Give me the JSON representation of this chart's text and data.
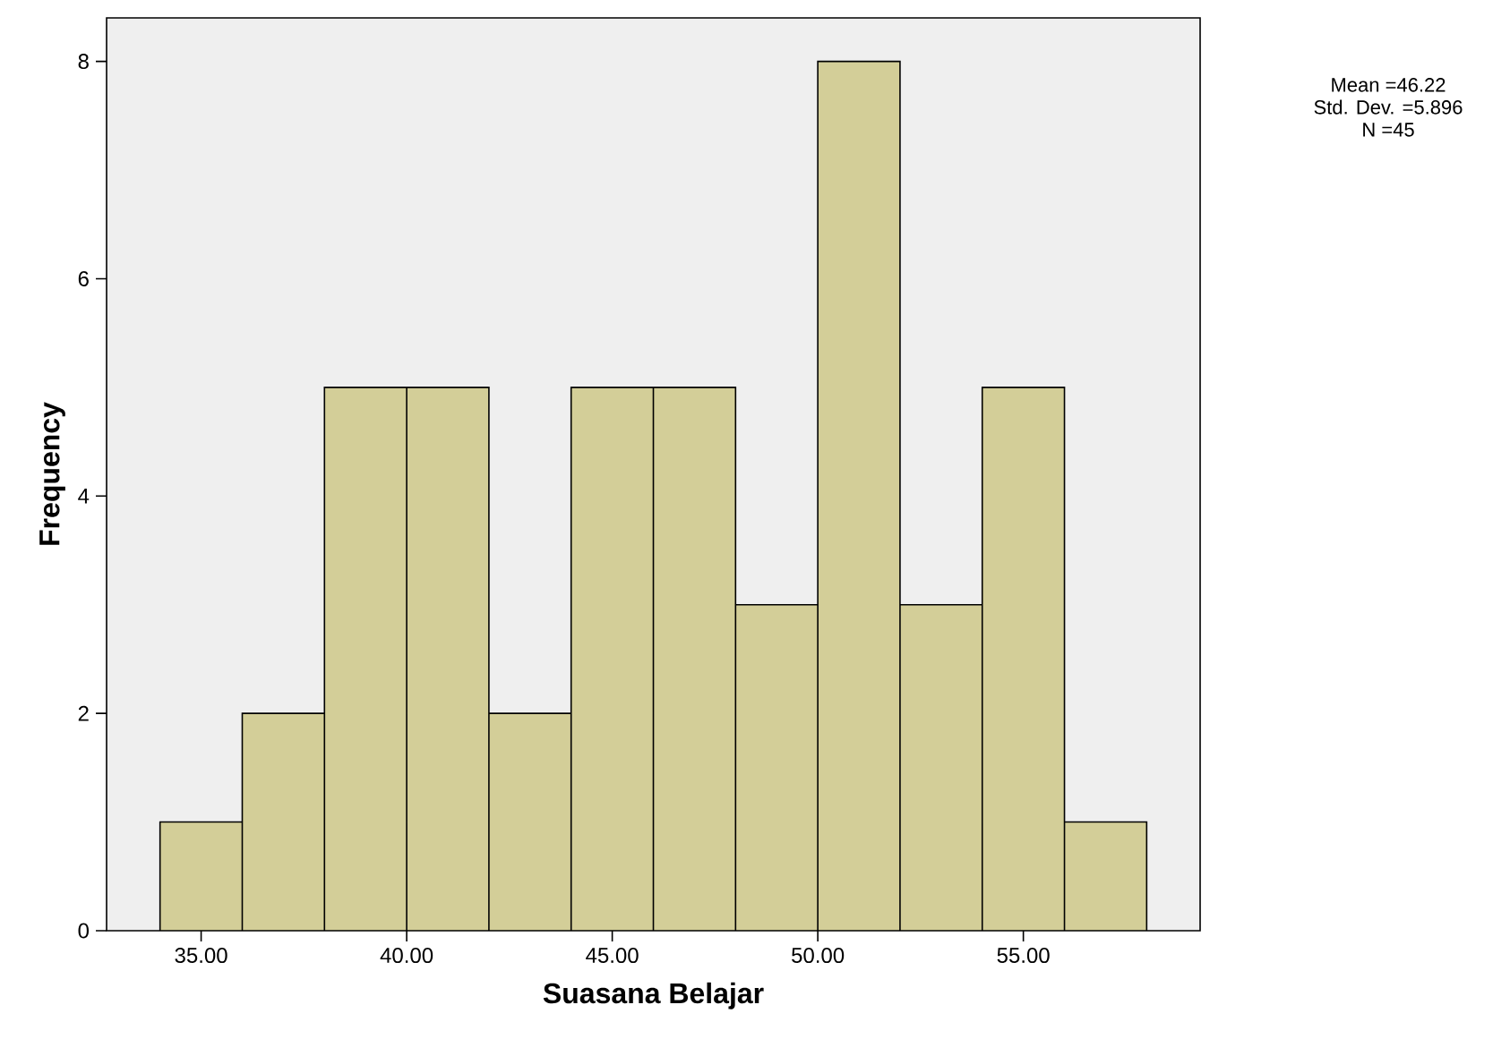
{
  "chart_data": {
    "type": "histogram",
    "xlabel": "Suasana Belajar",
    "ylabel": "Frequency",
    "bins": [
      34,
      36,
      38,
      40,
      42,
      44,
      46,
      48,
      50,
      52,
      54,
      56,
      58
    ],
    "values": [
      1,
      2,
      5,
      5,
      2,
      5,
      5,
      3,
      8,
      3,
      5,
      1
    ],
    "color": "#d3ce98",
    "xlim": [
      32.7,
      59.3
    ],
    "ylim": [
      0,
      8.4
    ],
    "xticks": [
      {
        "value": 35,
        "label": "35.00"
      },
      {
        "value": 40,
        "label": "40.00"
      },
      {
        "value": 45,
        "label": "45.00"
      },
      {
        "value": 50,
        "label": "50.00"
      },
      {
        "value": 55,
        "label": "55.00"
      }
    ],
    "yticks": [
      0,
      2,
      4,
      6,
      8
    ],
    "annotations": [
      "Mean =46.22",
      "Std. Dev. =5.896",
      "N =45"
    ]
  }
}
